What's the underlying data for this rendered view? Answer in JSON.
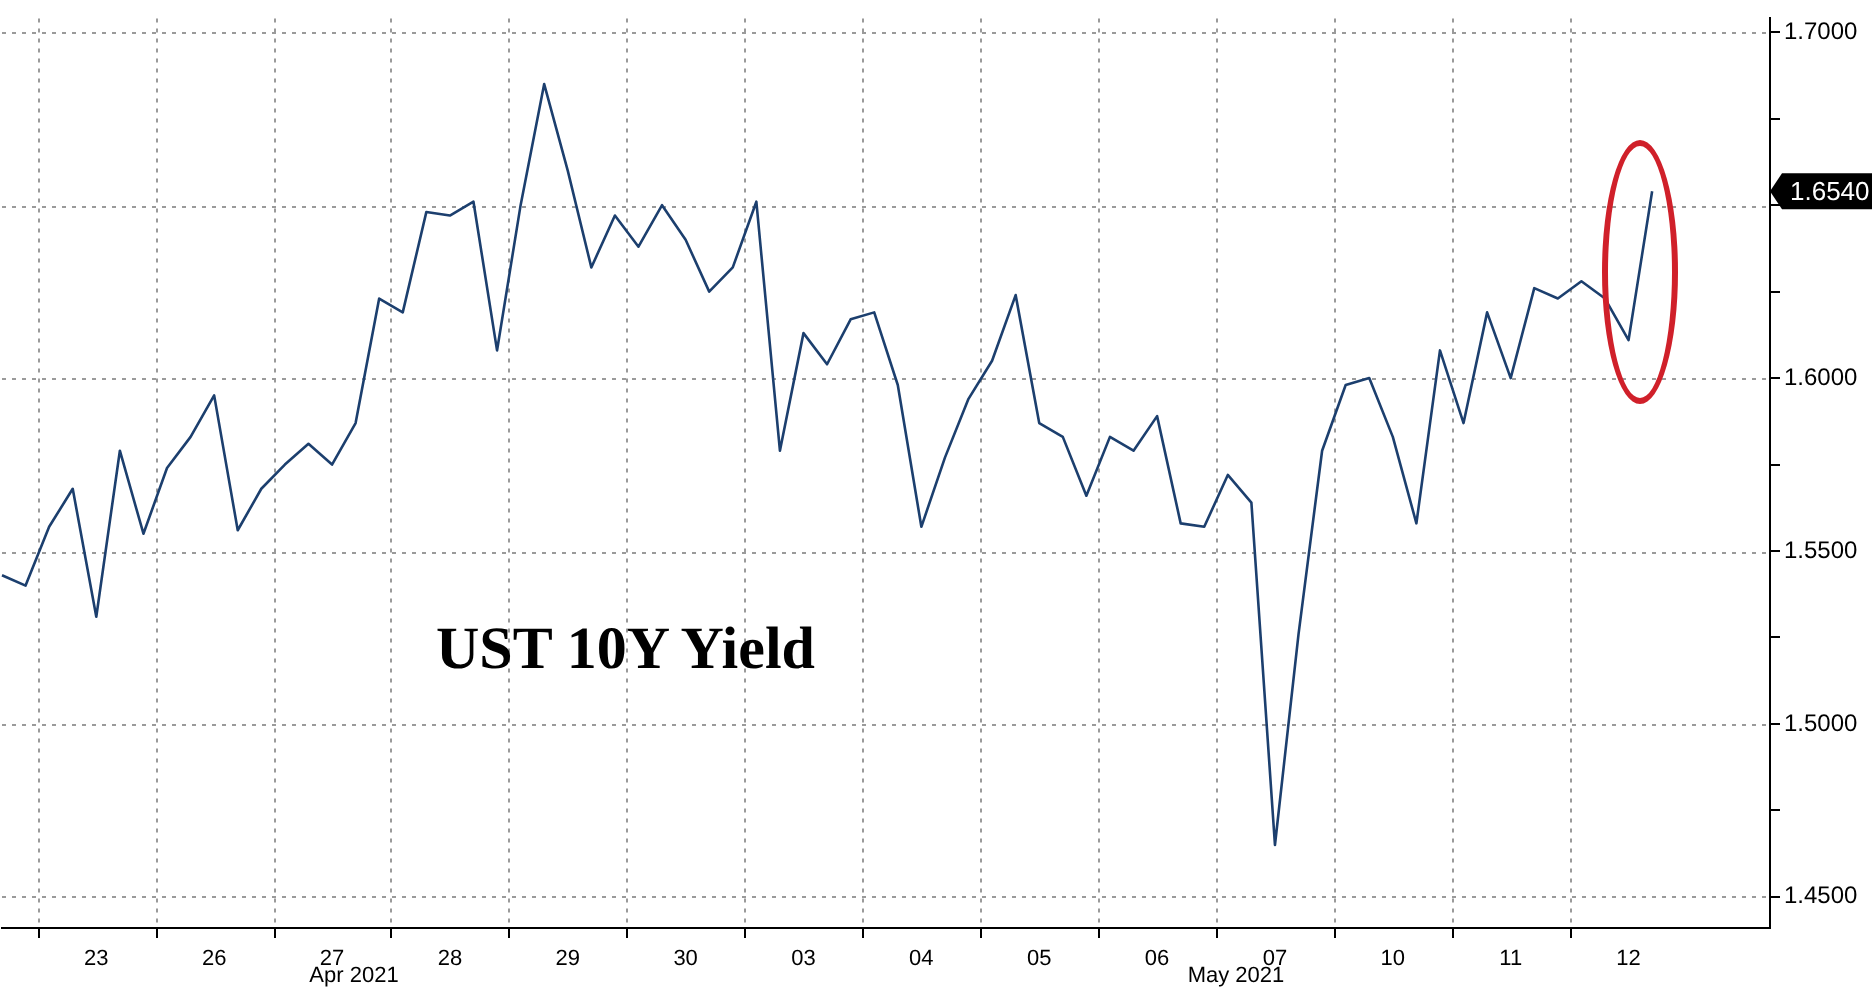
{
  "chart_data": {
    "type": "line",
    "title": "UST 10Y Yield",
    "annotations": [
      "Apr 2021",
      "May 2021",
      "1.6540"
    ],
    "categories": [
      null,
      null,
      null,
      null,
      "23",
      null,
      null,
      null,
      null,
      "26",
      null,
      null,
      null,
      null,
      "27",
      null,
      null,
      null,
      null,
      "28",
      null,
      null,
      null,
      null,
      "29",
      null,
      null,
      null,
      null,
      "30",
      null,
      null,
      null,
      null,
      "03",
      null,
      null,
      null,
      null,
      "04",
      null,
      null,
      null,
      null,
      "05",
      null,
      null,
      null,
      null,
      "06",
      null,
      null,
      null,
      null,
      "07",
      null,
      null,
      null,
      null,
      "10",
      null,
      null,
      null,
      null,
      "11",
      null,
      null,
      null,
      null,
      "12",
      null,
      null,
      null,
      null,
      null,
      null
    ],
    "series": [
      {
        "color": "#1c3f6e",
        "values": [
          1.543,
          1.54,
          1.557,
          1.568,
          1.531,
          1.579,
          1.555,
          1.574,
          1.583,
          1.595,
          1.556,
          1.568,
          1.575,
          1.581,
          1.575,
          1.587,
          1.623,
          1.619,
          1.648,
          1.647,
          1.651,
          1.608,
          1.65,
          1.685,
          1.66,
          1.632,
          1.647,
          1.638,
          1.65,
          1.64,
          1.625,
          1.632,
          1.651,
          1.579,
          1.613,
          1.604,
          1.617,
          1.619,
          1.598,
          1.557,
          1.577,
          1.594,
          1.605,
          1.624,
          1.587,
          1.583,
          1.566,
          1.583,
          1.579,
          1.589,
          1.558,
          1.557,
          1.572,
          1.564,
          1.465,
          1.526,
          1.579,
          1.598,
          1.6,
          1.583,
          1.558,
          1.608,
          1.587,
          1.619,
          1.6,
          1.626,
          1.623,
          1.628,
          1.623,
          1.611,
          1.654,
          null,
          null,
          null,
          null,
          null
        ]
      }
    ],
    "ylim": [
      1.441,
      1.704
    ],
    "yticks": [
      {
        "value": 1.45,
        "label": "1.4500"
      },
      {
        "value": 1.475,
        "label": null
      },
      {
        "value": 1.5,
        "label": "1.5000"
      },
      {
        "value": 1.525,
        "label": null
      },
      {
        "value": 1.55,
        "label": "1.5500"
      },
      {
        "value": 1.575,
        "label": null
      },
      {
        "value": 1.6,
        "label": "1.6000"
      },
      {
        "value": 1.625,
        "label": null
      },
      {
        "value": 1.65,
        "label": null
      },
      {
        "value": 1.675,
        "label": null
      },
      {
        "value": 1.7,
        "label": "1.7000"
      }
    ],
    "grid": true,
    "legend": false,
    "marker": "none"
  }
}
